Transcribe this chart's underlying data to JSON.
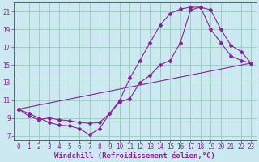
{
  "xlabel": "Windchill (Refroidissement éolien,°C)",
  "bg_color": "#cce8f0",
  "grid_color": "#99ccbb",
  "line_color": "#882299",
  "xlim": [
    -0.5,
    23.5
  ],
  "ylim": [
    6.5,
    22
  ],
  "xticks": [
    0,
    1,
    2,
    3,
    4,
    5,
    6,
    7,
    8,
    9,
    10,
    11,
    12,
    13,
    14,
    15,
    16,
    17,
    18,
    19,
    20,
    21,
    22,
    23
  ],
  "yticks": [
    7,
    9,
    11,
    13,
    15,
    17,
    19,
    21
  ],
  "line1_x": [
    0,
    1,
    2,
    3,
    4,
    5,
    6,
    7,
    8,
    9,
    10,
    11,
    12,
    13,
    14,
    15,
    16,
    17,
    18,
    19,
    20,
    21,
    22,
    23
  ],
  "line1_y": [
    10,
    9.5,
    9,
    8.5,
    8.2,
    8.1,
    7.8,
    7.1,
    7.8,
    9.5,
    11,
    13.5,
    15.5,
    17.5,
    19.5,
    20.8,
    21.3,
    21.5,
    21.5,
    21.2,
    19.0,
    17.2,
    16.5,
    15.2
  ],
  "line2_x": [
    0,
    1,
    2,
    3,
    4,
    5,
    6,
    7,
    8,
    9,
    10,
    11,
    12,
    13,
    14,
    15,
    16,
    17,
    18,
    19,
    20,
    21,
    22,
    23
  ],
  "line2_y": [
    10,
    9.2,
    8.8,
    9.0,
    8.8,
    8.7,
    8.5,
    8.4,
    8.5,
    9.5,
    10.8,
    11.2,
    13.0,
    13.8,
    15.0,
    15.5,
    17.5,
    21.2,
    21.5,
    19.0,
    17.5,
    16.0,
    15.5,
    15.2
  ],
  "line3_x": [
    0,
    23
  ],
  "line3_y": [
    10.0,
    15.2
  ],
  "xlabel_fontsize": 6.5,
  "tick_fontsize": 5.5
}
